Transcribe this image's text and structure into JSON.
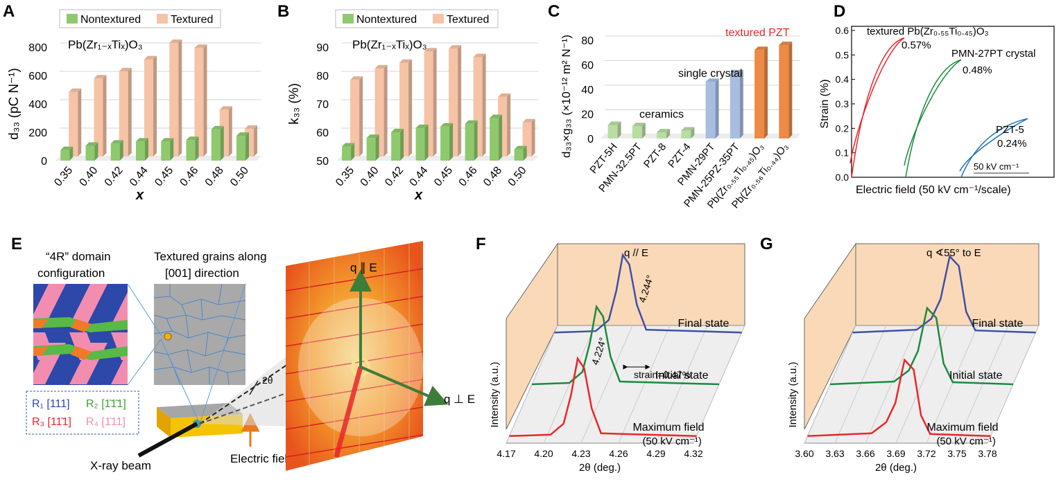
{
  "panels": {
    "A": {
      "letter": "A",
      "formula": "Pb(Zr₁₋ₓTiₓ)O₃",
      "legend": [
        "Nontextured",
        "Textured"
      ]
    },
    "B": {
      "letter": "B",
      "formula": "Pb(Zr₁₋ₓTiₓ)O₃",
      "legend": [
        "Nontextured",
        "Textured"
      ]
    },
    "C": {
      "letter": "C",
      "annotations": [
        "ceramics",
        "single crystal",
        "textured PZT"
      ]
    },
    "D": {
      "letter": "D",
      "scale_label": "50 kV cm⁻¹"
    },
    "E": {
      "letter": "E",
      "title_4r": "“4R” domain configuration",
      "title_grains": "Textured grains along [001] direction",
      "domain_legend": [
        "R₁ [111]",
        "R₂ [1̄1̄1]",
        "R₃ [11̄1]",
        "R₄ [1̄11]"
      ],
      "label_2theta": "2θ",
      "label_q_par": "q ∥ E",
      "label_q_perp": "q ⊥ E",
      "label_xray": "X-ray beam",
      "label_field": "Electric field"
    },
    "F": {
      "letter": "F",
      "corner_label": "q // E",
      "strain_label": "strain=0.47%",
      "peak_initial": "4.244°",
      "peak_max": "4.224°"
    },
    "G": {
      "letter": "G",
      "corner_label": "q ∢55° to E"
    }
  },
  "chart_data": [
    {
      "panel": "A",
      "type": "bar",
      "categories": [
        "0.35",
        "0.40",
        "0.42",
        "0.44",
        "0.45",
        "0.46",
        "0.48",
        "0.50"
      ],
      "series": [
        {
          "name": "Nontextured",
          "values": [
            75,
            105,
            120,
            135,
            135,
            145,
            220,
            175
          ],
          "color": "#8fc96e"
        },
        {
          "name": "Textured",
          "values": [
            455,
            550,
            600,
            685,
            800,
            765,
            330,
            195
          ],
          "color": "#f6c3a6"
        }
      ],
      "xlabel": "x",
      "ylabel": "d₃₃ (pC N⁻¹)",
      "ylim": [
        0,
        800
      ],
      "yticks": [
        0,
        200,
        400,
        600,
        800
      ]
    },
    {
      "panel": "B",
      "type": "bar",
      "categories": [
        "0.35",
        "0.40",
        "0.42",
        "0.44",
        "0.45",
        "0.46",
        "0.48",
        "0.50"
      ],
      "series": [
        {
          "name": "Nontextured",
          "values": [
            55,
            58,
            60,
            61.5,
            62,
            63,
            65,
            54
          ],
          "color": "#8fc96e"
        },
        {
          "name": "Textured",
          "values": [
            77,
            81,
            83,
            87,
            88,
            85,
            71,
            62
          ],
          "color": "#f6c3a6"
        }
      ],
      "xlabel": "x",
      "ylabel": "k₃₃ (%)",
      "ylim": [
        50,
        90
      ],
      "yticks": [
        50,
        60,
        70,
        80,
        90
      ]
    },
    {
      "panel": "C",
      "type": "bar",
      "categories": [
        "PZT-5H",
        "PMN-32.5PT",
        "PZT-8",
        "PZT-4",
        "PMN-29PT",
        "PMN-25PZ-35PT",
        "Pb(Zr₀.₅₅Ti₀.₄₅)O₃",
        "Pb(Zr₀.₅₆Ti₀.₄₄)O₃"
      ],
      "values": [
        11,
        10,
        5,
        6.5,
        46,
        53,
        72,
        76
      ],
      "colors": [
        "#b9dca3",
        "#b9dca3",
        "#b9dca3",
        "#b9dca3",
        "#a8bde0",
        "#a8bde0",
        "#ec8a46",
        "#ec8a46"
      ],
      "ylabel": "d₃₃×g₃₃ (×10⁻¹² m² N⁻¹)",
      "ylim": [
        0,
        80
      ],
      "yticks": [
        0,
        20,
        40,
        60,
        80
      ]
    },
    {
      "panel": "D",
      "type": "line",
      "series": [
        {
          "name": "textured Pb(Zr0.55Ti0.45)O3",
          "label": "textured Pb(Zr₀.₅₅Ti₀.₄₅)O₃",
          "max_label": "0.57%",
          "max_strain": 0.57,
          "color": "#e8262b"
        },
        {
          "name": "PMN-27PT crystal",
          "label": "PMN-27PT crystal",
          "max_label": "0.48%",
          "max_strain": 0.48,
          "color": "#1a8a3e"
        },
        {
          "name": "PZT-5",
          "label": "PZT-5",
          "max_label": "0.24%",
          "max_strain": 0.24,
          "color": "#1c6fb5"
        }
      ],
      "xlabel": "Electric field (50 kV cm⁻¹/scale)",
      "ylabel": "Strain (%)",
      "ylim": [
        0,
        0.6
      ],
      "yticks": [
        "0.0",
        "0.1",
        "0.2",
        "0.3",
        "0.4",
        "0.5",
        "0.6"
      ]
    },
    {
      "panel": "F",
      "type": "line",
      "xlabel": "2θ (deg.)",
      "ylabel": "Intensity (a.u.)",
      "xticks": [
        "4.17",
        "4.20",
        "4.23",
        "4.26",
        "4.29",
        "4.32"
      ],
      "series": [
        {
          "name": "Final state",
          "label": "Final state",
          "color": "#3d4fa8"
        },
        {
          "name": "Initial state",
          "label": "Initial state",
          "peak": 4.244,
          "color": "#1a8a3e"
        },
        {
          "name": "Maximum field",
          "label": "Maximum field",
          "sublabel": "(50 kV cm⁻¹)",
          "peak": 4.224,
          "color": "#e8262b"
        }
      ]
    },
    {
      "panel": "G",
      "type": "line",
      "xlabel": "2θ (deg.)",
      "ylabel": "Intensity (a.u.)",
      "xticks": [
        "3.60",
        "3.63",
        "3.66",
        "3.69",
        "3.72",
        "3.75",
        "3.78"
      ],
      "series": [
        {
          "name": "Final state",
          "label": "Final state",
          "color": "#3d4fa8"
        },
        {
          "name": "Initial state",
          "label": "Initial state",
          "color": "#1a8a3e"
        },
        {
          "name": "Maximum field",
          "label": "Maximum field",
          "sublabel": "(50 kV cm⁻¹)",
          "color": "#e8262b"
        }
      ]
    }
  ]
}
